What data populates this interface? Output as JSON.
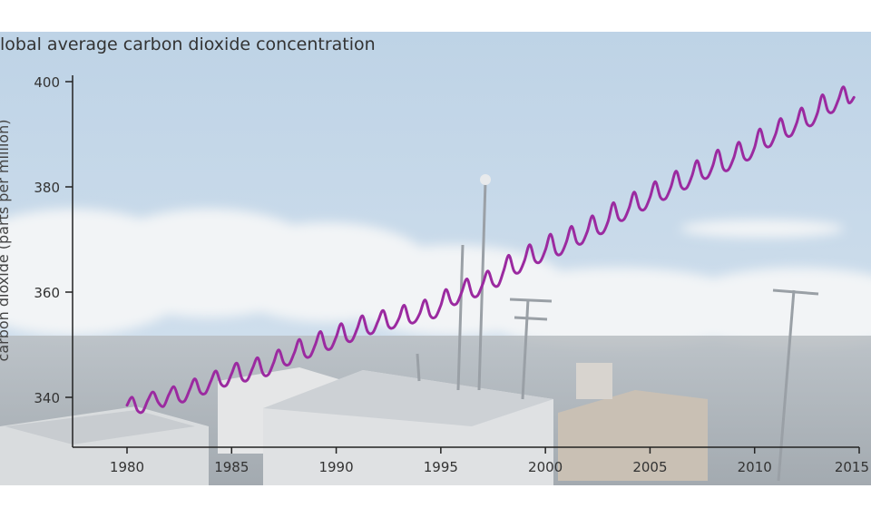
{
  "chart_data": {
    "type": "line",
    "title": "lobal average carbon dioxide concentration",
    "ylabel": "carbon dioxide (parts per million)",
    "xlabel": "",
    "x_ticks": [
      "1980",
      "1985",
      "1990",
      "1995",
      "2000",
      "2005",
      "2010",
      "2015"
    ],
    "y_ticks": [
      "340",
      "360",
      "380",
      "400"
    ],
    "xlim": [
      1980,
      2015
    ],
    "ylim": [
      332,
      402
    ],
    "grid": false,
    "series": [
      {
        "color": "#9b2aa0",
        "x": [
          1980.0,
          1980.25,
          1980.5,
          1980.75,
          1981.0,
          1981.25,
          1981.5,
          1981.75,
          1982.0,
          1982.25,
          1982.5,
          1982.75,
          1983.0,
          1983.25,
          1983.5,
          1983.75,
          1984.0,
          1984.25,
          1984.5,
          1984.75,
          1985.0,
          1985.25,
          1985.5,
          1985.75,
          1986.0,
          1986.25,
          1986.5,
          1986.75,
          1987.0,
          1987.25,
          1987.5,
          1987.75,
          1988.0,
          1988.25,
          1988.5,
          1988.75,
          1989.0,
          1989.25,
          1989.5,
          1989.75,
          1990.0,
          1990.25,
          1990.5,
          1990.75,
          1991.0,
          1991.25,
          1991.5,
          1991.75,
          1992.0,
          1992.25,
          1992.5,
          1992.75,
          1993.0,
          1993.25,
          1993.5,
          1993.75,
          1994.0,
          1994.25,
          1994.5,
          1994.75,
          1995.0,
          1995.25,
          1995.5,
          1995.75,
          1996.0,
          1996.25,
          1996.5,
          1996.75,
          1997.0,
          1997.25,
          1997.5,
          1997.75,
          1998.0,
          1998.25,
          1998.5,
          1998.75,
          1999.0,
          1999.25,
          1999.5,
          1999.75,
          2000.0,
          2000.25,
          2000.5,
          2000.75,
          2001.0,
          2001.25,
          2001.5,
          2001.75,
          2002.0,
          2002.25,
          2002.5,
          2002.75,
          2003.0,
          2003.25,
          2003.5,
          2003.75,
          2004.0,
          2004.25,
          2004.5,
          2004.75,
          2005.0,
          2005.25,
          2005.5,
          2005.75,
          2006.0,
          2006.25,
          2006.5,
          2006.75,
          2007.0,
          2007.25,
          2007.5,
          2007.75,
          2008.0,
          2008.25,
          2008.5,
          2008.75,
          2009.0,
          2009.25,
          2009.5,
          2009.75,
          2010.0,
          2010.25,
          2010.5,
          2010.75,
          2011.0,
          2011.25,
          2011.5,
          2011.75,
          2012.0,
          2012.25,
          2012.5,
          2012.75,
          2013.0,
          2013.25,
          2013.5,
          2013.75,
          2014.0,
          2014.25,
          2014.5,
          2014.75
        ],
        "y": [
          338.5,
          340.0,
          337.5,
          337.3,
          339.5,
          341.0,
          339.0,
          338.3,
          340.5,
          342.0,
          339.5,
          339.3,
          341.5,
          343.5,
          341.0,
          340.8,
          343.0,
          345.0,
          342.5,
          342.3,
          344.5,
          346.5,
          343.5,
          343.3,
          345.5,
          347.5,
          344.5,
          344.3,
          346.5,
          349.0,
          346.5,
          346.3,
          348.5,
          351.0,
          348.0,
          347.8,
          350.0,
          352.5,
          349.5,
          349.3,
          351.5,
          354.0,
          351.0,
          350.8,
          353.0,
          355.5,
          352.5,
          352.3,
          354.5,
          356.5,
          353.5,
          353.3,
          355.0,
          357.5,
          354.5,
          354.3,
          356.0,
          358.5,
          355.5,
          355.3,
          357.5,
          360.5,
          358.0,
          357.8,
          360.0,
          362.5,
          359.5,
          359.3,
          361.5,
          364.0,
          361.5,
          361.3,
          364.0,
          367.0,
          364.0,
          363.8,
          366.0,
          369.0,
          366.0,
          365.8,
          368.0,
          371.0,
          367.5,
          367.3,
          369.5,
          372.5,
          369.5,
          369.3,
          371.5,
          374.5,
          371.5,
          371.3,
          373.5,
          377.0,
          374.0,
          373.8,
          376.0,
          379.0,
          376.0,
          375.8,
          378.0,
          381.0,
          378.0,
          377.8,
          380.0,
          383.0,
          380.0,
          379.8,
          382.0,
          385.0,
          382.0,
          381.8,
          384.0,
          387.0,
          383.5,
          383.3,
          385.5,
          388.5,
          385.5,
          385.3,
          387.5,
          391.0,
          388.0,
          387.8,
          390.0,
          393.0,
          390.0,
          389.8,
          392.0,
          395.0,
          392.0,
          391.8,
          394.0,
          397.5,
          394.5,
          394.3,
          396.5,
          399.0,
          396.0,
          397.0
        ]
      }
    ]
  },
  "colors": {
    "sky_top": "#bed3e6",
    "sky_bottom": "#d6e3ef",
    "cloud": "#f2f4f6",
    "ground": "#a9aeb2",
    "building": "#e2e4e6",
    "axis": "#222222",
    "text": "#333333"
  }
}
